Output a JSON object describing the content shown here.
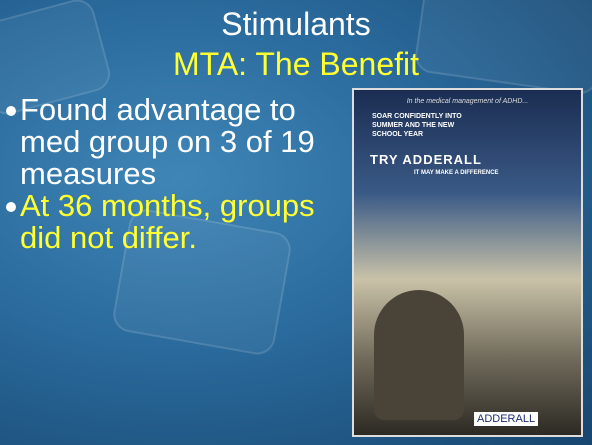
{
  "slide": {
    "title": "Stimulants",
    "subtitle": "MTA: The Benefit",
    "bullets": [
      "Found advantage to med group on 3 of 19 measures",
      "At 36 months, groups did not differ."
    ],
    "image": {
      "intro": "In the medical management of ADHD...",
      "headline": "SOAR CONFIDENTLY INTO SUMMER AND THE NEW SCHOOL YEAR",
      "try": "TRY ADDERALL",
      "tagline": "IT MAY MAKE A DIFFERENCE",
      "brand": "ADDERALL"
    }
  }
}
